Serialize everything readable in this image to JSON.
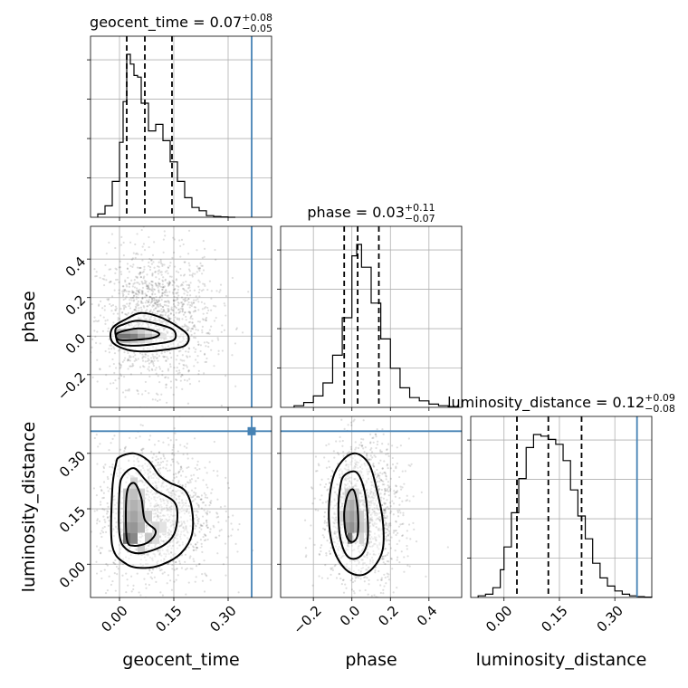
{
  "chart_data": {
    "type": "corner",
    "parameters": [
      {
        "name": "geocent_time",
        "axis_label": "geocent_time",
        "title_main": "geocent_time = 0.07",
        "title_sup": "+0.08",
        "title_sub": "−0.05",
        "range": [
          -0.08,
          0.42
        ],
        "ticks": [
          0.0,
          0.15,
          0.3
        ],
        "tick_labels": [
          "0.00",
          "0.15",
          "0.30"
        ],
        "quantiles": [
          0.02,
          0.07,
          0.145
        ],
        "truth": 0.365,
        "hist_bins": [
          -0.06,
          -0.04,
          -0.02,
          0.0,
          0.01,
          0.02,
          0.03,
          0.04,
          0.05,
          0.06,
          0.08,
          0.1,
          0.12,
          0.14,
          0.16,
          0.18,
          0.2,
          0.22,
          0.24,
          0.26,
          0.28,
          0.3,
          0.32
        ],
        "hist_values": [
          0.02,
          0.07,
          0.22,
          0.46,
          0.71,
          1.0,
          0.94,
          0.87,
          0.86,
          0.7,
          0.53,
          0.57,
          0.47,
          0.34,
          0.22,
          0.12,
          0.06,
          0.04,
          0.01,
          0.005,
          0.002,
          0.0
        ]
      },
      {
        "name": "phase",
        "axis_label": "phase",
        "title_main": "phase = 0.03",
        "title_sup": "+0.11",
        "title_sub": "−0.07",
        "range": [
          -0.37,
          0.57
        ],
        "ticks": [
          -0.2,
          0.0,
          0.2,
          0.4
        ],
        "tick_labels": [
          "−0.2",
          "0.0",
          "0.2",
          "0.4"
        ],
        "quantiles": [
          -0.04,
          0.03,
          0.14
        ],
        "truth": null,
        "hist_bins": [
          -0.3,
          -0.25,
          -0.2,
          -0.15,
          -0.1,
          -0.05,
          0.0,
          0.025,
          0.05,
          0.1,
          0.15,
          0.2,
          0.25,
          0.3,
          0.35,
          0.4,
          0.45,
          0.5,
          0.55
        ],
        "hist_values": [
          0.01,
          0.03,
          0.07,
          0.15,
          0.32,
          0.55,
          0.93,
          1.0,
          0.86,
          0.64,
          0.42,
          0.24,
          0.12,
          0.06,
          0.04,
          0.02,
          0.01,
          0.005
        ]
      },
      {
        "name": "luminosity_distance",
        "axis_label": "luminosity_distance",
        "title_main": "luminosity_distance = 0.12",
        "title_sup": "+0.09",
        "title_sub": "−0.08",
        "range": [
          -0.09,
          0.4
        ],
        "ticks": [
          0.0,
          0.15,
          0.3
        ],
        "tick_labels": [
          "0.00",
          "0.15",
          "0.30"
        ],
        "quantiles": [
          0.035,
          0.12,
          0.21
        ],
        "truth": 0.36,
        "hist_bins": [
          -0.07,
          -0.05,
          -0.03,
          -0.01,
          0.0,
          0.02,
          0.04,
          0.06,
          0.08,
          0.1,
          0.12,
          0.14,
          0.16,
          0.18,
          0.2,
          0.22,
          0.24,
          0.26,
          0.28,
          0.3,
          0.32,
          0.34,
          0.36,
          0.38,
          0.4
        ],
        "hist_values": [
          0.01,
          0.02,
          0.06,
          0.17,
          0.31,
          0.52,
          0.73,
          0.92,
          1.0,
          0.99,
          0.97,
          0.94,
          0.84,
          0.66,
          0.5,
          0.36,
          0.21,
          0.12,
          0.07,
          0.04,
          0.02,
          0.01,
          0.005,
          0.002
        ]
      }
    ],
    "truth_color": "#4682b4",
    "grid": true,
    "pairs": [
      {
        "x": "geocent_time",
        "y": "phase",
        "contour_levels": [
          [
            [
              0.02,
              0.09
            ],
            [
              0.06,
              0.12
            ],
            [
              0.11,
              0.1
            ],
            [
              0.16,
              0.05
            ],
            [
              0.19,
              0.0
            ],
            [
              0.18,
              -0.05
            ],
            [
              0.13,
              -0.07
            ],
            [
              0.07,
              -0.08
            ],
            [
              0.02,
              -0.07
            ],
            [
              -0.02,
              -0.03
            ],
            [
              -0.02,
              0.04
            ]
          ],
          [
            [
              0.01,
              0.06
            ],
            [
              0.05,
              0.08
            ],
            [
              0.11,
              0.06
            ],
            [
              0.15,
              0.03
            ],
            [
              0.15,
              -0.02
            ],
            [
              0.1,
              -0.04
            ],
            [
              0.04,
              -0.05
            ],
            [
              0.0,
              -0.04
            ],
            [
              -0.01,
              0.0
            ],
            [
              -0.01,
              0.04
            ]
          ],
          [
            [
              0.0,
              0.02
            ],
            [
              0.05,
              0.04
            ],
            [
              0.09,
              0.03
            ],
            [
              0.11,
              0.01
            ],
            [
              0.09,
              -0.01
            ],
            [
              0.04,
              -0.02
            ],
            [
              0.0,
              -0.02
            ],
            [
              -0.01,
              0.0
            ]
          ]
        ],
        "density_cells": [
          [
            0.0,
            0.0,
            1.0
          ],
          [
            0.02,
            0.0,
            1.0
          ],
          [
            0.04,
            0.0,
            0.9
          ],
          [
            0.06,
            0.0,
            0.65
          ],
          [
            0.08,
            0.0,
            0.45
          ],
          [
            0.1,
            0.0,
            0.3
          ],
          [
            0.12,
            0.0,
            0.2
          ],
          [
            0.0,
            0.025,
            0.5
          ],
          [
            0.02,
            0.025,
            0.55
          ],
          [
            0.04,
            0.025,
            0.5
          ],
          [
            0.06,
            0.025,
            0.35
          ],
          [
            0.08,
            0.025,
            0.2
          ],
          [
            0.0,
            -0.025,
            0.45
          ],
          [
            0.02,
            -0.025,
            0.5
          ],
          [
            0.04,
            -0.025,
            0.4
          ],
          [
            0.06,
            -0.025,
            0.3
          ],
          [
            0.08,
            -0.025,
            0.18
          ]
        ],
        "scatter_extent": {
          "x": [
            -0.07,
            0.27
          ],
          "y": [
            -0.28,
            0.46
          ]
        }
      },
      {
        "x": "geocent_time",
        "y": "luminosity_distance",
        "contour_levels": [
          [
            [
              0.0,
              0.29
            ],
            [
              0.04,
              0.3
            ],
            [
              0.08,
              0.28
            ],
            [
              0.11,
              0.24
            ],
            [
              0.14,
              0.22
            ],
            [
              0.18,
              0.2
            ],
            [
              0.2,
              0.15
            ],
            [
              0.2,
              0.08
            ],
            [
              0.17,
              0.03
            ],
            [
              0.12,
              0.0
            ],
            [
              0.07,
              -0.01
            ],
            [
              0.02,
              0.0
            ],
            [
              -0.02,
              0.05
            ],
            [
              -0.02,
              0.2
            ],
            [
              -0.01,
              0.27
            ]
          ],
          [
            [
              0.01,
              0.24
            ],
            [
              0.04,
              0.26
            ],
            [
              0.07,
              0.23
            ],
            [
              0.1,
              0.2
            ],
            [
              0.15,
              0.17
            ],
            [
              0.16,
              0.13
            ],
            [
              0.15,
              0.08
            ],
            [
              0.12,
              0.05
            ],
            [
              0.06,
              0.03
            ],
            [
              0.02,
              0.04
            ],
            [
              0.0,
              0.08
            ],
            [
              0.0,
              0.2
            ]
          ],
          [
            [
              0.02,
              0.19
            ],
            [
              0.04,
              0.22
            ],
            [
              0.06,
              0.18
            ],
            [
              0.07,
              0.12
            ],
            [
              0.1,
              0.09
            ],
            [
              0.08,
              0.06
            ],
            [
              0.04,
              0.05
            ],
            [
              0.02,
              0.07
            ]
          ]
        ],
        "density_cells": [
          [
            0.02,
            0.07,
            1.0
          ],
          [
            0.04,
            0.07,
            0.85
          ],
          [
            0.02,
            0.1,
            0.7
          ],
          [
            0.04,
            0.1,
            0.75
          ],
          [
            0.06,
            0.1,
            0.55
          ],
          [
            0.02,
            0.13,
            0.55
          ],
          [
            0.04,
            0.13,
            0.65
          ],
          [
            0.06,
            0.13,
            0.5
          ],
          [
            0.08,
            0.13,
            0.35
          ],
          [
            0.02,
            0.16,
            0.45
          ],
          [
            0.04,
            0.16,
            0.55
          ],
          [
            0.06,
            0.16,
            0.45
          ],
          [
            0.02,
            0.19,
            0.4
          ],
          [
            0.04,
            0.19,
            0.45
          ],
          [
            0.06,
            0.19,
            0.3
          ],
          [
            0.04,
            0.22,
            0.3
          ],
          [
            0.06,
            0.04,
            0.35
          ],
          [
            0.08,
            0.07,
            0.4
          ],
          [
            0.1,
            0.1,
            0.3
          ],
          [
            0.12,
            0.1,
            0.2
          ],
          [
            0.1,
            0.07,
            0.25
          ]
        ],
        "scatter_extent": {
          "x": [
            -0.07,
            0.27
          ],
          "y": [
            -0.07,
            0.34
          ]
        }
      },
      {
        "x": "phase",
        "y": "luminosity_distance",
        "contour_levels": [
          [
            [
              -0.05,
              0.28
            ],
            [
              0.02,
              0.3
            ],
            [
              0.09,
              0.27
            ],
            [
              0.13,
              0.2
            ],
            [
              0.16,
              0.12
            ],
            [
              0.16,
              0.04
            ],
            [
              0.11,
              -0.01
            ],
            [
              0.04,
              -0.03
            ],
            [
              -0.04,
              -0.01
            ],
            [
              -0.1,
              0.05
            ],
            [
              -0.12,
              0.14
            ],
            [
              -0.1,
              0.23
            ]
          ],
          [
            [
              -0.04,
              0.24
            ],
            [
              0.02,
              0.25
            ],
            [
              0.06,
              0.21
            ],
            [
              0.08,
              0.14
            ],
            [
              0.08,
              0.06
            ],
            [
              0.04,
              0.02
            ],
            [
              -0.02,
              0.02
            ],
            [
              -0.06,
              0.07
            ],
            [
              -0.07,
              0.15
            ],
            [
              -0.06,
              0.21
            ]
          ],
          [
            [
              -0.02,
              0.19
            ],
            [
              0.01,
              0.2
            ],
            [
              0.03,
              0.15
            ],
            [
              0.03,
              0.08
            ],
            [
              0.0,
              0.06
            ],
            [
              -0.03,
              0.08
            ],
            [
              -0.04,
              0.14
            ]
          ]
        ],
        "density_cells": [
          [
            -0.01,
            0.07,
            1.0
          ],
          [
            0.0,
            0.1,
            0.8
          ],
          [
            -0.025,
            0.1,
            0.7
          ],
          [
            0.025,
            0.1,
            0.6
          ],
          [
            0.0,
            0.13,
            0.7
          ],
          [
            -0.025,
            0.13,
            0.6
          ],
          [
            0.025,
            0.13,
            0.55
          ],
          [
            0.0,
            0.16,
            0.6
          ],
          [
            -0.025,
            0.16,
            0.5
          ],
          [
            0.025,
            0.16,
            0.45
          ],
          [
            0.0,
            0.19,
            0.45
          ],
          [
            -0.025,
            0.19,
            0.35
          ],
          [
            0.025,
            0.19,
            0.3
          ],
          [
            0.05,
            0.13,
            0.35
          ],
          [
            0.05,
            0.1,
            0.4
          ],
          [
            0.05,
            0.07,
            0.3
          ],
          [
            0.075,
            0.1,
            0.25
          ],
          [
            -0.05,
            0.13,
            0.3
          ]
        ],
        "scatter_extent": {
          "x": [
            -0.17,
            0.27
          ],
          "y": [
            -0.07,
            0.34
          ]
        }
      }
    ]
  }
}
